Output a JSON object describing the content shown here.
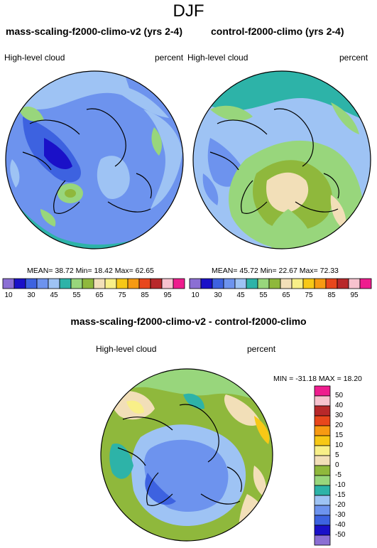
{
  "figure": {
    "season": "DJF"
  },
  "panels": {
    "left": {
      "title": "mass-scaling-f2000-climo-v2 (yrs 2-4)",
      "variable": "High-level cloud",
      "units": "percent",
      "stats": "MEAN=  38.72  Min=  18.42  Max=  62.65"
    },
    "right": {
      "title": "control-f2000-climo (yrs 2-4)",
      "variable": "High-level cloud",
      "units": "percent",
      "stats": "MEAN=  45.72  Min=  22.67  Max=  72.33"
    },
    "diff": {
      "title": "mass-scaling-f2000-climo-v2 - control-f2000-climo",
      "variable": "High-level cloud",
      "units": "percent",
      "stats": "MIN = -31.18 MAX =  18.20"
    }
  },
  "colorbar_top": {
    "labels": [
      "10",
      "30",
      "45",
      "55",
      "65",
      "75",
      "85",
      "95"
    ],
    "colors": [
      "#8b6fd4",
      "#1a10c8",
      "#3d62e0",
      "#6d93ee",
      "#9ec3f4",
      "#2db3a8",
      "#98d67c",
      "#8fb83c",
      "#f2dfb8",
      "#f8ef88",
      "#f7c816",
      "#f79a12",
      "#e8471c",
      "#b8282a",
      "#f7c2ce",
      "#ee1d8e"
    ]
  },
  "colorbar_diff": {
    "labels": [
      "50",
      "40",
      "30",
      "20",
      "15",
      "10",
      "5",
      "0",
      "-5",
      "-10",
      "-15",
      "-20",
      "-30",
      "-40",
      "-50"
    ],
    "colors": [
      "#ee1d8e",
      "#f7c2ce",
      "#b8282a",
      "#e8471c",
      "#f79a12",
      "#f7c816",
      "#f8ef88",
      "#f2dfb8",
      "#8fb83c",
      "#98d67c",
      "#2db3a8",
      "#9ec3f4",
      "#6d93ee",
      "#3d62e0",
      "#1a10c8",
      "#8b6fd4"
    ]
  }
}
